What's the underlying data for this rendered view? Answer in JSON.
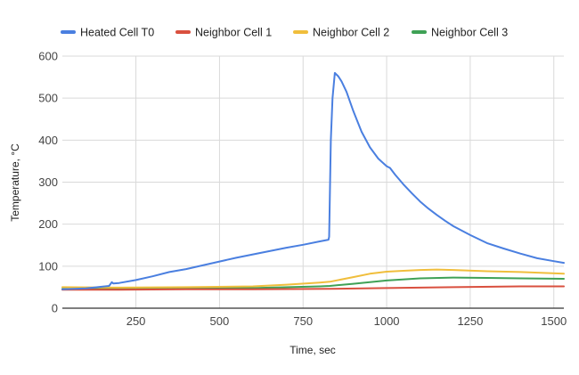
{
  "chart_data": {
    "type": "line",
    "title": "",
    "xlabel": "Time, sec",
    "ylabel": "Temperature, °C",
    "xlim": [
      30,
      1530
    ],
    "ylim": [
      0,
      600
    ],
    "xticks": [
      250,
      500,
      750,
      1000,
      1250,
      1500
    ],
    "yticks": [
      0,
      100,
      200,
      300,
      400,
      500,
      600
    ],
    "grid": true,
    "legend_position": "top",
    "series": [
      {
        "name": "Heated Cell T0",
        "color": "#4a7fe0",
        "points": [
          [
            30,
            45
          ],
          [
            100,
            47
          ],
          [
            170,
            53
          ],
          [
            178,
            62
          ],
          [
            182,
            59
          ],
          [
            200,
            60
          ],
          [
            250,
            67
          ],
          [
            300,
            76
          ],
          [
            350,
            86
          ],
          [
            400,
            93
          ],
          [
            450,
            102
          ],
          [
            500,
            111
          ],
          [
            550,
            120
          ],
          [
            600,
            128
          ],
          [
            650,
            136
          ],
          [
            700,
            144
          ],
          [
            750,
            151
          ],
          [
            800,
            159
          ],
          [
            826,
            163
          ],
          [
            828,
            170
          ],
          [
            833,
            400
          ],
          [
            838,
            500
          ],
          [
            845,
            560
          ],
          [
            855,
            552
          ],
          [
            865,
            540
          ],
          [
            880,
            515
          ],
          [
            900,
            470
          ],
          [
            925,
            420
          ],
          [
            950,
            383
          ],
          [
            975,
            356
          ],
          [
            1000,
            338
          ],
          [
            1010,
            334
          ],
          [
            1025,
            318
          ],
          [
            1050,
            295
          ],
          [
            1075,
            274
          ],
          [
            1100,
            254
          ],
          [
            1125,
            237
          ],
          [
            1150,
            222
          ],
          [
            1175,
            208
          ],
          [
            1200,
            195
          ],
          [
            1250,
            174
          ],
          [
            1300,
            155
          ],
          [
            1350,
            142
          ],
          [
            1400,
            130
          ],
          [
            1450,
            119
          ],
          [
            1500,
            112
          ],
          [
            1530,
            108
          ]
        ]
      },
      {
        "name": "Neighbor Cell 1",
        "color": "#d9503f",
        "points": [
          [
            30,
            44
          ],
          [
            200,
            44
          ],
          [
            400,
            45
          ],
          [
            600,
            45
          ],
          [
            830,
            46
          ],
          [
            1000,
            48
          ],
          [
            1200,
            50
          ],
          [
            1400,
            52
          ],
          [
            1530,
            52
          ]
        ]
      },
      {
        "name": "Neighbor Cell 2",
        "color": "#f0be3c",
        "points": [
          [
            30,
            50
          ],
          [
            200,
            49
          ],
          [
            400,
            50
          ],
          [
            600,
            52
          ],
          [
            700,
            56
          ],
          [
            800,
            61
          ],
          [
            830,
            63
          ],
          [
            900,
            74
          ],
          [
            950,
            82
          ],
          [
            1000,
            87
          ],
          [
            1050,
            89
          ],
          [
            1100,
            91
          ],
          [
            1150,
            92
          ],
          [
            1200,
            91
          ],
          [
            1300,
            88
          ],
          [
            1400,
            86
          ],
          [
            1530,
            82
          ]
        ]
      },
      {
        "name": "Neighbor Cell 3",
        "color": "#3fa156",
        "points": [
          [
            30,
            46
          ],
          [
            200,
            46
          ],
          [
            400,
            47
          ],
          [
            600,
            48
          ],
          [
            800,
            52
          ],
          [
            830,
            53
          ],
          [
            900,
            58
          ],
          [
            1000,
            66
          ],
          [
            1100,
            71
          ],
          [
            1200,
            73
          ],
          [
            1300,
            72
          ],
          [
            1400,
            71
          ],
          [
            1530,
            70
          ]
        ]
      }
    ]
  }
}
